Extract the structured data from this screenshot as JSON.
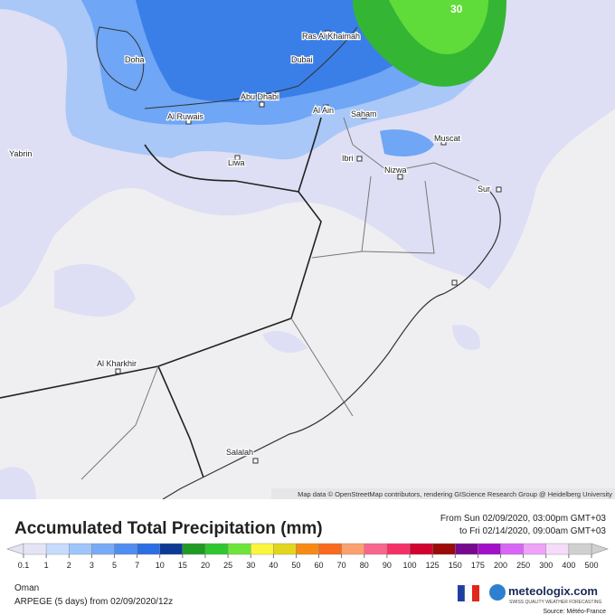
{
  "map": {
    "labels": [
      "Doha",
      "Abu Dhabi",
      "Dubai",
      "Ras Al Khaimah",
      "Al Ain",
      "Al Ruwais",
      "Liwa",
      "Yabrin",
      "Saham",
      "Ibri",
      "Nizwa",
      "Muscat",
      "Sur",
      "Al Kharkhir",
      "Salalah"
    ],
    "max_label": "30",
    "attribution": "Map data © OpenStreetMap contributors, rendering GIScience Research Group @ Heidelberg University"
  },
  "title": "Accumulated Total Precipitation (mm)",
  "valid_from": "From Sun 02/09/2020, 03:00pm GMT+03",
  "valid_to": "to Fri 02/14/2020, 09:00am GMT+03",
  "scale": {
    "labels": [
      0.1,
      1,
      2,
      3,
      5,
      7,
      10,
      15,
      20,
      25,
      30,
      40,
      50,
      60,
      70,
      80,
      90,
      100,
      125,
      150,
      175,
      200,
      250,
      300,
      400,
      500
    ],
    "colors": [
      "#e4e4f6",
      "#c7dcfd",
      "#9fc6fb",
      "#78abf7",
      "#4f8ef0",
      "#2a6fe3",
      "#0d3a95",
      "#1f9a22",
      "#2fc72f",
      "#6ce53a",
      "#fbf63c",
      "#e2d61c",
      "#f88a14",
      "#fa6a1c",
      "#fba06e",
      "#f8658f",
      "#f53066",
      "#d2022f",
      "#9c0a0a",
      "#76098f",
      "#a30ec8",
      "#d766f6",
      "#eea2f8",
      "#f4dcfa",
      "#d0d0d0"
    ]
  },
  "region": "Oman",
  "model": "ARPEGE (5 days) from 02/09/2020/12z",
  "brand": {
    "name": "meteologix.com",
    "tagline": "SWISS QUALITY WEATHER FORECASTING"
  },
  "source": "Source: Météo-France"
}
